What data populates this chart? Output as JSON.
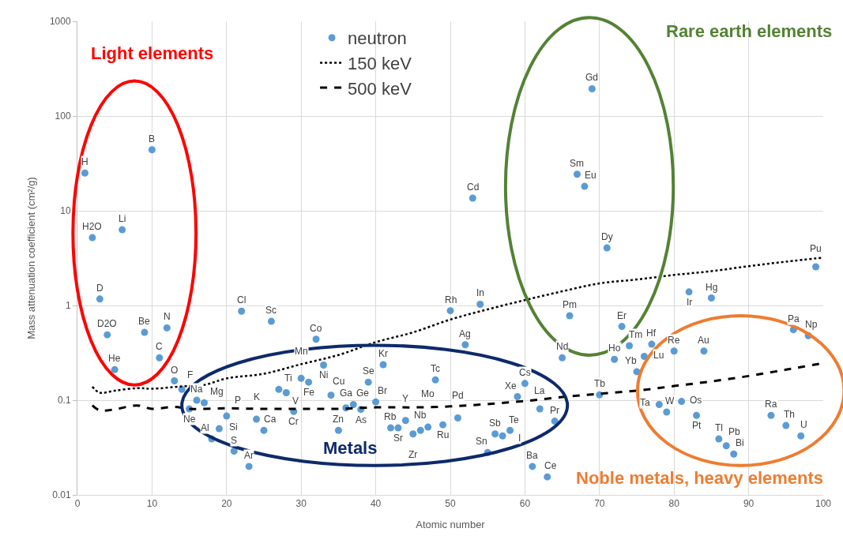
{
  "chart_data": {
    "type": "scatter",
    "xlabel": "Atomic number",
    "ylabel": "Mass attenuation coefficient (cm²/g)",
    "xlim": [
      0,
      100
    ],
    "xticks": [
      0,
      10,
      20,
      30,
      40,
      50,
      60,
      70,
      80,
      90,
      100
    ],
    "ylim": [
      0.01,
      1000
    ],
    "yticks": [
      0.01,
      0.1,
      1,
      10,
      100,
      1000
    ],
    "log": true,
    "grid": true,
    "legend": "top",
    "series": [
      {
        "name": "neutron",
        "color": "#5b9bd5",
        "marker": "circle",
        "x": [
          1,
          2,
          3,
          4,
          5,
          6,
          9,
          10,
          11,
          12,
          13,
          14,
          15,
          16,
          17,
          18,
          19,
          20,
          21,
          22,
          23,
          24,
          25,
          26,
          27,
          28,
          29,
          30,
          31,
          32,
          33,
          34,
          35,
          36,
          37,
          38,
          39,
          40,
          41,
          42,
          43,
          44,
          45,
          46,
          47,
          48,
          49,
          50,
          51,
          52,
          53,
          54,
          55,
          56,
          57,
          58,
          59,
          60,
          61,
          62,
          63,
          64,
          65,
          66,
          67,
          68,
          69,
          70,
          71,
          72,
          73,
          74,
          75,
          76,
          77,
          78,
          79,
          80,
          81,
          82,
          83,
          84,
          85,
          86,
          87,
          88,
          93,
          95,
          96,
          97,
          98,
          99
        ],
        "values": [
          25,
          5.2,
          1.17,
          0.49,
          0.21,
          6.3,
          0.52,
          44,
          0.28,
          0.58,
          0.16,
          0.13,
          0.081,
          0.1,
          0.094,
          0.039,
          0.05,
          0.068,
          0.029,
          0.87,
          0.02,
          0.063,
          0.048,
          0.68,
          0.13,
          0.12,
          0.076,
          0.17,
          0.155,
          0.44,
          0.235,
          0.113,
          0.048,
          0.083,
          0.09,
          0.08,
          0.155,
          0.096,
          0.237,
          0.051,
          0.051,
          0.061,
          0.044,
          0.048,
          0.052,
          0.164,
          0.055,
          0.88,
          0.065,
          0.385,
          13.6,
          1.03,
          0.028,
          0.044,
          0.042,
          0.048,
          0.109,
          0.15,
          0.02,
          0.081,
          0.0155,
          0.06,
          0.28,
          0.78,
          24.3,
          18.1,
          194,
          0.114,
          4.05,
          0.27,
          0.6,
          0.376,
          0.2,
          0.29,
          0.39,
          0.09,
          0.075,
          0.33,
          0.097,
          1.39,
          0.069,
          0.33,
          1.2,
          0.039,
          0.033,
          0.027,
          0.069,
          0.054,
          0.555,
          0.042,
          0.48,
          2.56
        ]
      },
      {
        "name": "150 keV",
        "type": "line",
        "color": "#000000",
        "line_style": "dotted",
        "marker": "none",
        "x": [
          2,
          3,
          5,
          8,
          10,
          14,
          17,
          20,
          25,
          30,
          35,
          40,
          45,
          50,
          55,
          60,
          65,
          70,
          75,
          80,
          85,
          90,
          95,
          100
        ],
        "values": [
          0.139,
          0.12,
          0.126,
          0.134,
          0.132,
          0.14,
          0.145,
          0.17,
          0.19,
          0.24,
          0.3,
          0.41,
          0.52,
          0.71,
          0.91,
          1.14,
          1.41,
          1.71,
          1.88,
          2.1,
          2.3,
          2.6,
          2.9,
          3.2
        ]
      },
      {
        "name": "500 keV",
        "type": "line",
        "color": "#000000",
        "line_style": "dashed",
        "marker": "none",
        "x": [
          2,
          3,
          5,
          8,
          10,
          13,
          15,
          20,
          25,
          30,
          35,
          40,
          45,
          50,
          55,
          60,
          65,
          70,
          75,
          80,
          85,
          90,
          95,
          100
        ],
        "values": [
          0.088,
          0.078,
          0.08,
          0.088,
          0.081,
          0.085,
          0.081,
          0.082,
          0.081,
          0.081,
          0.081,
          0.084,
          0.084,
          0.086,
          0.091,
          0.098,
          0.108,
          0.117,
          0.126,
          0.141,
          0.158,
          0.18,
          0.21,
          0.246
        ]
      }
    ],
    "annotations": [
      "Light elements",
      "Metals",
      "Rare earth elements",
      "Noble metals, heavy elements",
      {
        "text": "H",
        "x": 1,
        "y": 25
      },
      {
        "text": "H2O",
        "x": 2,
        "y": 5.2
      },
      {
        "text": "D",
        "x": 3,
        "y": 1.17
      },
      {
        "text": "D2O",
        "x": 4,
        "y": 0.49
      },
      {
        "text": "He",
        "x": 5,
        "y": 0.21
      },
      {
        "text": "Li",
        "x": 6,
        "y": 6.3
      },
      {
        "text": "Be",
        "x": 9,
        "y": 0.52
      },
      {
        "text": "B",
        "x": 10,
        "y": 44
      },
      {
        "text": "C",
        "x": 11,
        "y": 0.28
      },
      {
        "text": "N",
        "x": 12,
        "y": 0.58
      },
      {
        "text": "O",
        "x": 13,
        "y": 0.16
      },
      {
        "text": "F",
        "x": 14,
        "y": 0.13
      },
      {
        "text": "Ne",
        "x": 15,
        "y": 0.081
      },
      {
        "text": "Na",
        "x": 16,
        "y": 0.1
      },
      {
        "text": "Mg",
        "x": 17,
        "y": 0.094
      },
      {
        "text": "Al",
        "x": 18,
        "y": 0.039
      },
      {
        "text": "Si",
        "x": 19,
        "y": 0.05
      },
      {
        "text": "P",
        "x": 20,
        "y": 0.068
      },
      {
        "text": "S",
        "x": 21,
        "y": 0.029
      },
      {
        "text": "Cl",
        "x": 22,
        "y": 0.87
      },
      {
        "text": "Ar",
        "x": 23,
        "y": 0.02
      },
      {
        "text": "K",
        "x": 24,
        "y": 0.063
      },
      {
        "text": "Ca",
        "x": 25,
        "y": 0.048
      },
      {
        "text": "Sc",
        "x": 26,
        "y": 0.68
      },
      {
        "text": "Ti",
        "x": 27,
        "y": 0.13
      },
      {
        "text": "V",
        "x": 28,
        "y": 0.12
      },
      {
        "text": "Cr",
        "x": 29,
        "y": 0.076
      },
      {
        "text": "Mn",
        "x": 30,
        "y": 0.17
      },
      {
        "text": "Fe",
        "x": 31,
        "y": 0.155
      },
      {
        "text": "Co",
        "x": 32,
        "y": 0.44
      },
      {
        "text": "Ni",
        "x": 33,
        "y": 0.235
      },
      {
        "text": "Cu",
        "x": 34,
        "y": 0.113
      },
      {
        "text": "Zn",
        "x": 35,
        "y": 0.048
      },
      {
        "text": "Ga",
        "x": 36,
        "y": 0.083
      },
      {
        "text": "Ge",
        "x": 37,
        "y": 0.09
      },
      {
        "text": "As",
        "x": 38,
        "y": 0.08
      },
      {
        "text": "Se",
        "x": 39,
        "y": 0.155
      },
      {
        "text": "Br",
        "x": 40,
        "y": 0.096
      },
      {
        "text": "Kr",
        "x": 41,
        "y": 0.237
      },
      {
        "text": "Rb",
        "x": 42,
        "y": 0.051
      },
      {
        "text": "Sr",
        "x": 43,
        "y": 0.051
      },
      {
        "text": "Y",
        "x": 44,
        "y": 0.061
      },
      {
        "text": "Zr",
        "x": 45,
        "y": 0.044
      },
      {
        "text": "Nb",
        "x": 46,
        "y": 0.048
      },
      {
        "text": "Mo",
        "x": 47,
        "y": 0.052
      },
      {
        "text": "Tc",
        "x": 48,
        "y": 0.164
      },
      {
        "text": "Ru",
        "x": 49,
        "y": 0.055
      },
      {
        "text": "Rh",
        "x": 50,
        "y": 0.88
      },
      {
        "text": "Pd",
        "x": 51,
        "y": 0.065
      },
      {
        "text": "Ag",
        "x": 52,
        "y": 0.385
      },
      {
        "text": "Cd",
        "x": 53,
        "y": 13.6
      },
      {
        "text": "In",
        "x": 54,
        "y": 1.03
      },
      {
        "text": "Sn",
        "x": 55,
        "y": 0.028
      },
      {
        "text": "Sb",
        "x": 56,
        "y": 0.044
      },
      {
        "text": "Te",
        "x": 57,
        "y": 0.042
      },
      {
        "text": "I",
        "x": 58,
        "y": 0.048
      },
      {
        "text": "Xe",
        "x": 59,
        "y": 0.109
      },
      {
        "text": "Cs",
        "x": 60,
        "y": 0.15
      },
      {
        "text": "Ba",
        "x": 61,
        "y": 0.02
      },
      {
        "text": "La",
        "x": 62,
        "y": 0.081
      },
      {
        "text": "Ce",
        "x": 63,
        "y": 0.0155
      },
      {
        "text": "Pr",
        "x": 64,
        "y": 0.06
      },
      {
        "text": "Nd",
        "x": 65,
        "y": 0.28
      },
      {
        "text": "Pm",
        "x": 66,
        "y": 0.78
      },
      {
        "text": "Sm",
        "x": 67,
        "y": 24.3
      },
      {
        "text": "Eu",
        "x": 68,
        "y": 18.1
      },
      {
        "text": "Gd",
        "x": 69,
        "y": 194
      },
      {
        "text": "Tb",
        "x": 70,
        "y": 0.114
      },
      {
        "text": "Dy",
        "x": 71,
        "y": 4.05
      },
      {
        "text": "Ho",
        "x": 72,
        "y": 0.27
      },
      {
        "text": "Er",
        "x": 73,
        "y": 0.6
      },
      {
        "text": "Tm",
        "x": 74,
        "y": 0.376
      },
      {
        "text": "Yb",
        "x": 75,
        "y": 0.2
      },
      {
        "text": "Lu",
        "x": 76,
        "y": 0.29
      },
      {
        "text": "Hf",
        "x": 77,
        "y": 0.39
      },
      {
        "text": "Ta",
        "x": 78,
        "y": 0.09
      },
      {
        "text": "W",
        "x": 79,
        "y": 0.075
      },
      {
        "text": "Re",
        "x": 80,
        "y": 0.33
      },
      {
        "text": "Os",
        "x": 81,
        "y": 0.097
      },
      {
        "text": "Ir",
        "x": 82,
        "y": 1.39
      },
      {
        "text": "Pt",
        "x": 83,
        "y": 0.069
      },
      {
        "text": "Au",
        "x": 84,
        "y": 0.33
      },
      {
        "text": "Hg",
        "x": 85,
        "y": 1.2
      },
      {
        "text": "Tl",
        "x": 86,
        "y": 0.039
      },
      {
        "text": "Pb",
        "x": 87,
        "y": 0.033
      },
      {
        "text": "Bi",
        "x": 88,
        "y": 0.027
      },
      {
        "text": "Ra",
        "x": 93,
        "y": 0.069
      },
      {
        "text": "Th",
        "x": 95,
        "y": 0.054
      },
      {
        "text": "Pa",
        "x": 96,
        "y": 0.555
      },
      {
        "text": "U",
        "x": 97,
        "y": 0.042
      },
      {
        "text": "Np",
        "x": 98,
        "y": 0.48
      },
      {
        "text": "Pu",
        "x": 99,
        "y": 2.56
      }
    ]
  }
}
